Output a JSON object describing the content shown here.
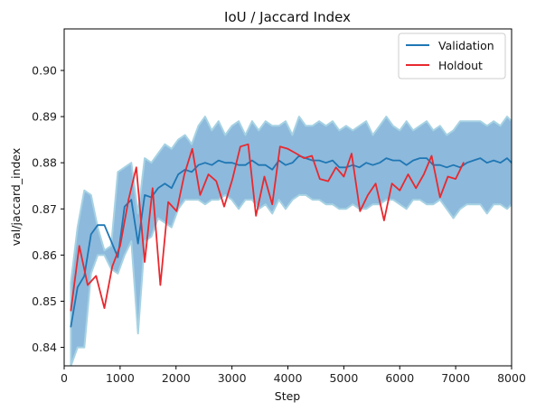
{
  "chart_data": {
    "type": "line",
    "title": "IoU / Jaccard Index",
    "xlabel": "Step",
    "ylabel": "val/jaccard_index",
    "xlim": [
      0,
      8000
    ],
    "ylim": [
      0.836,
      0.909
    ],
    "xticks": [
      0,
      1000,
      2000,
      3000,
      4000,
      5000,
      6000,
      7000,
      8000
    ],
    "xtick_labels": [
      "0",
      "1000",
      "2000",
      "3000",
      "4000",
      "5000",
      "6000",
      "7000",
      "8000"
    ],
    "yticks": [
      0.84,
      0.85,
      0.86,
      0.87,
      0.88,
      0.89,
      0.9
    ],
    "ytick_labels": [
      "0.84",
      "0.85",
      "0.86",
      "0.87",
      "0.88",
      "0.89",
      "0.90"
    ],
    "grid": false,
    "legend_position": "top-right",
    "colors": {
      "validation": "#1f77b4",
      "holdout": "#e8292f",
      "band_fill": "#8db9dc",
      "band_edge": "#a6d2e3"
    },
    "series": [
      {
        "name": "Validation",
        "x": [
          120,
          240,
          360,
          480,
          600,
          720,
          840,
          960,
          1080,
          1200,
          1320,
          1440,
          1560,
          1680,
          1800,
          1920,
          2040,
          2160,
          2280,
          2400,
          2520,
          2640,
          2760,
          2880,
          3000,
          3120,
          3240,
          3360,
          3480,
          3600,
          3720,
          3840,
          3960,
          4080,
          4200,
          4320,
          4440,
          4560,
          4680,
          4800,
          4920,
          5040,
          5160,
          5280,
          5400,
          5520,
          5640,
          5760,
          5880,
          6000,
          6120,
          6240,
          6360,
          6480,
          6600,
          6720,
          6840,
          6960,
          7080,
          7200,
          7320,
          7440,
          7560,
          7680,
          7800,
          7920,
          8000
        ],
        "y": [
          0.8445,
          0.853,
          0.8555,
          0.8645,
          0.8665,
          0.8665,
          0.863,
          0.8595,
          0.8705,
          0.872,
          0.8625,
          0.873,
          0.8725,
          0.8745,
          0.8755,
          0.8745,
          0.8775,
          0.8785,
          0.878,
          0.8795,
          0.88,
          0.8795,
          0.8805,
          0.88,
          0.88,
          0.8795,
          0.8795,
          0.8805,
          0.8795,
          0.8795,
          0.8785,
          0.8805,
          0.8795,
          0.88,
          0.8815,
          0.881,
          0.8805,
          0.8805,
          0.88,
          0.8805,
          0.879,
          0.879,
          0.8795,
          0.879,
          0.88,
          0.8795,
          0.88,
          0.881,
          0.8805,
          0.8805,
          0.8795,
          0.8805,
          0.881,
          0.881,
          0.8795,
          0.8795,
          0.879,
          0.8795,
          0.879,
          0.88,
          0.8805,
          0.881,
          0.88,
          0.8805,
          0.88,
          0.881,
          0.88
        ]
      },
      {
        "name": "Holdout",
        "x": [
          120,
          270,
          420,
          570,
          720,
          860,
          1000,
          1150,
          1290,
          1440,
          1580,
          1720,
          1860,
          2010,
          2150,
          2290,
          2430,
          2580,
          2720,
          2860,
          3010,
          3150,
          3290,
          3430,
          3580,
          3720,
          3860,
          4000,
          4150,
          4290,
          4430,
          4570,
          4720,
          4860,
          5000,
          5140,
          5290,
          5430,
          5570,
          5720,
          5860,
          6000,
          6150,
          6290,
          6430,
          6570,
          6720,
          6860,
          7000,
          7140
        ],
        "y": [
          0.848,
          0.862,
          0.8535,
          0.8555,
          0.8485,
          0.8575,
          0.862,
          0.872,
          0.879,
          0.8585,
          0.8745,
          0.8535,
          0.8715,
          0.8695,
          0.8775,
          0.883,
          0.873,
          0.8775,
          0.876,
          0.8705,
          0.8765,
          0.8835,
          0.884,
          0.8685,
          0.877,
          0.871,
          0.8835,
          0.883,
          0.882,
          0.881,
          0.8815,
          0.8765,
          0.876,
          0.879,
          0.877,
          0.882,
          0.8695,
          0.873,
          0.8755,
          0.8675,
          0.8755,
          0.874,
          0.8775,
          0.8745,
          0.8775,
          0.8815,
          0.8725,
          0.877,
          0.8765,
          0.88
        ]
      }
    ],
    "band": {
      "x": [
        120,
        240,
        360,
        480,
        600,
        720,
        840,
        960,
        1080,
        1200,
        1320,
        1440,
        1560,
        1680,
        1800,
        1920,
        2040,
        2160,
        2280,
        2400,
        2520,
        2640,
        2760,
        2880,
        3000,
        3120,
        3240,
        3360,
        3480,
        3600,
        3720,
        3840,
        3960,
        4080,
        4200,
        4320,
        4440,
        4560,
        4680,
        4800,
        4920,
        5040,
        5160,
        5280,
        5400,
        5520,
        5640,
        5760,
        5880,
        6000,
        6120,
        6240,
        6360,
        6480,
        6600,
        6720,
        6840,
        6960,
        7080,
        7200,
        7320,
        7440,
        7560,
        7680,
        7800,
        7920,
        8000
      ],
      "upper": [
        0.854,
        0.866,
        0.874,
        0.873,
        0.866,
        0.861,
        0.862,
        0.878,
        0.879,
        0.88,
        0.869,
        0.881,
        0.88,
        0.882,
        0.884,
        0.883,
        0.885,
        0.886,
        0.884,
        0.888,
        0.89,
        0.887,
        0.889,
        0.886,
        0.888,
        0.889,
        0.886,
        0.889,
        0.887,
        0.889,
        0.888,
        0.888,
        0.889,
        0.886,
        0.89,
        0.888,
        0.888,
        0.889,
        0.888,
        0.889,
        0.887,
        0.888,
        0.887,
        0.888,
        0.889,
        0.886,
        0.888,
        0.89,
        0.888,
        0.887,
        0.889,
        0.887,
        0.888,
        0.889,
        0.887,
        0.888,
        0.886,
        0.887,
        0.889,
        0.889,
        0.889,
        0.889,
        0.888,
        0.889,
        0.888,
        0.89,
        0.889
      ],
      "lower": [
        0.836,
        0.84,
        0.84,
        0.856,
        0.86,
        0.86,
        0.857,
        0.856,
        0.86,
        0.863,
        0.843,
        0.863,
        0.864,
        0.868,
        0.867,
        0.866,
        0.87,
        0.872,
        0.872,
        0.872,
        0.871,
        0.872,
        0.872,
        0.873,
        0.872,
        0.87,
        0.872,
        0.872,
        0.87,
        0.871,
        0.869,
        0.872,
        0.87,
        0.872,
        0.873,
        0.873,
        0.872,
        0.872,
        0.871,
        0.871,
        0.87,
        0.87,
        0.871,
        0.87,
        0.87,
        0.871,
        0.871,
        0.872,
        0.872,
        0.871,
        0.87,
        0.872,
        0.872,
        0.871,
        0.871,
        0.872,
        0.87,
        0.868,
        0.87,
        0.871,
        0.871,
        0.871,
        0.869,
        0.871,
        0.871,
        0.87,
        0.871
      ]
    }
  }
}
